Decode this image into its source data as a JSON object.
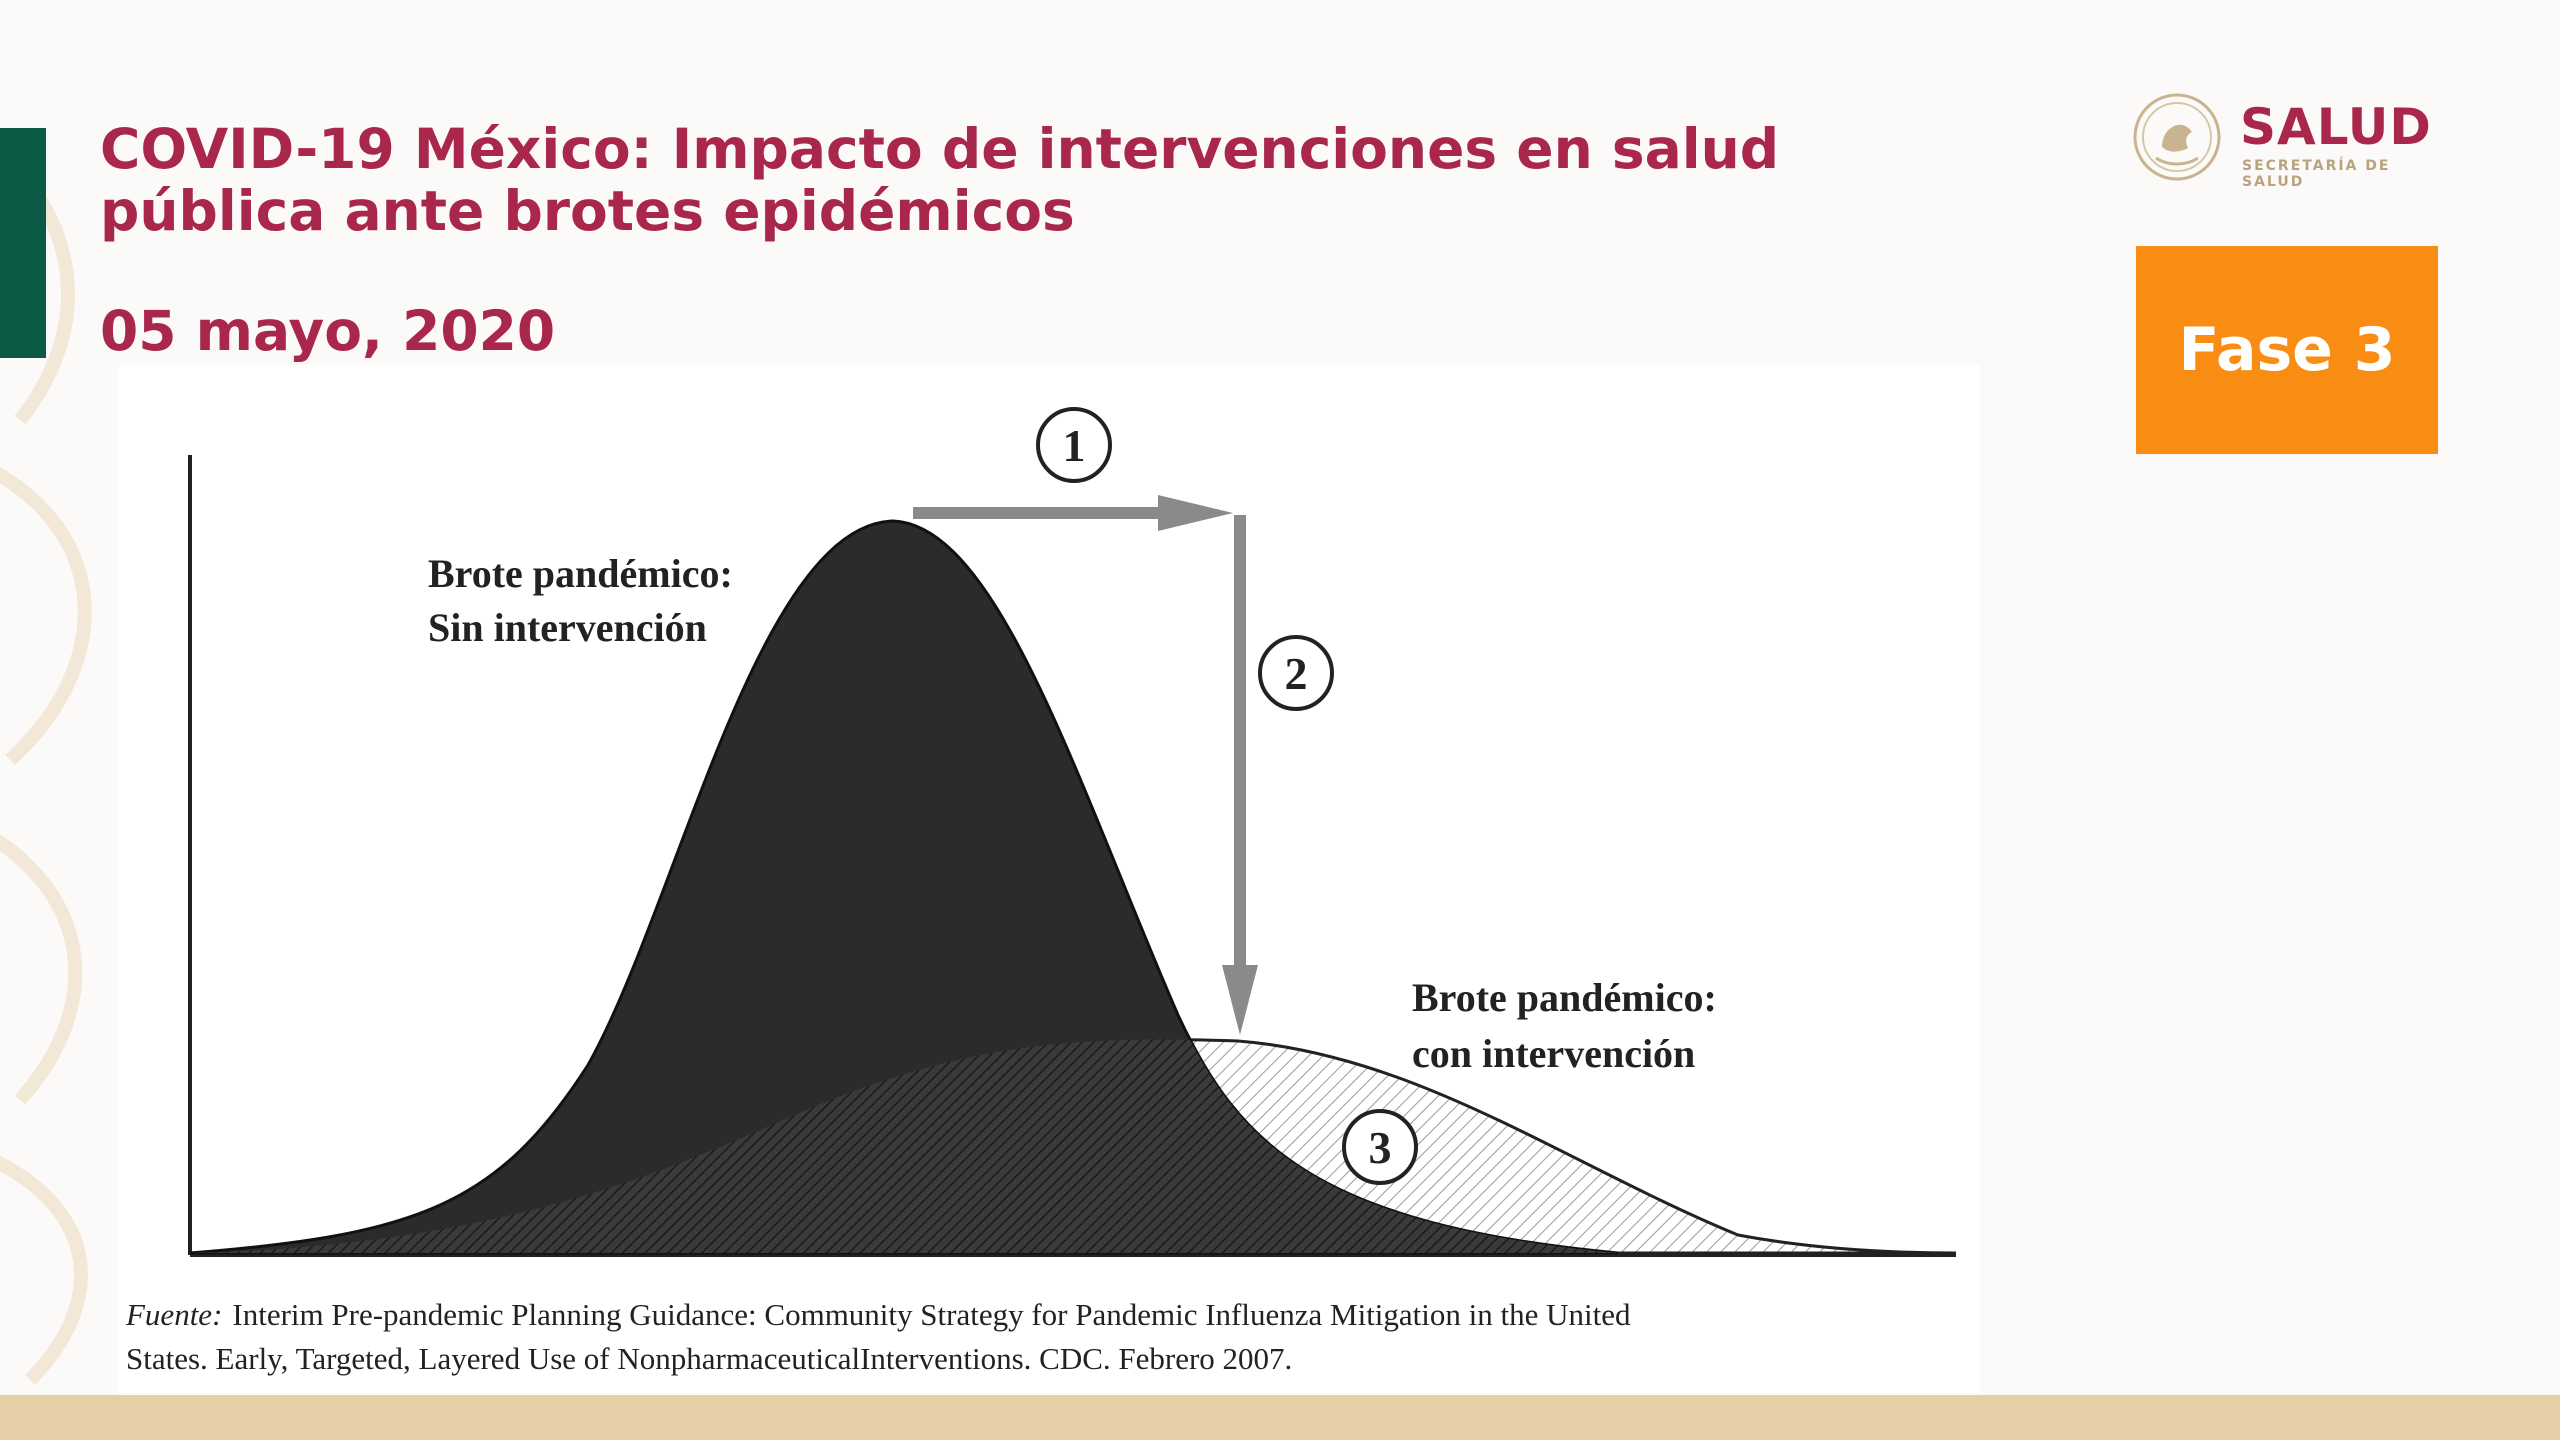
{
  "slide": {
    "title": "COVID-19 México: Impacto de intervenciones en salud pública ante brotes epidémicos",
    "date": "05 mayo, 2020",
    "phase_badge": "Fase 3"
  },
  "logo": {
    "wordmark": "SALUD",
    "subtitle": "SECRETARÍA DE SALUD",
    "seal_icon": "mexico-coat-of-arms-seal-icon"
  },
  "diagram": {
    "curve_without_intervention": {
      "label_line1": "Brote pandémico:",
      "label_line2": "Sin intervención"
    },
    "curve_with_intervention": {
      "label_line1": "Brote pandémico:",
      "label_line2": "con intervención"
    },
    "markers": [
      "1",
      "2",
      "3"
    ]
  },
  "source": {
    "label": "Fuente:",
    "line1": "Interim Pre-pandemic Planning Guidance: Community Strategy for Pandemic Influenza Mitigation in the United",
    "line2": "States. Early, Targeted, Layered Use of NonpharmaceuticalInterventions. CDC. Febrero 2007."
  },
  "colors": {
    "title": "#a8274a",
    "accent_green": "#0b5a45",
    "phase_badge": "#f98c13",
    "bottom_bar": "#e5cfa6"
  }
}
